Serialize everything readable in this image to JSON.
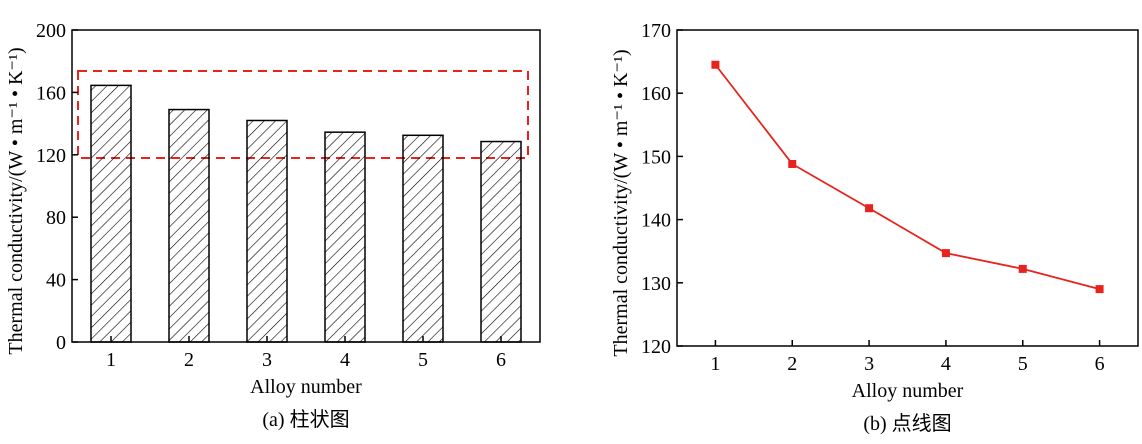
{
  "chart_data": [
    {
      "type": "bar",
      "caption": "(a) 柱状图",
      "xlabel": "Alloy number",
      "ylabel": "Thermal conductivity/(W • m⁻¹ • K⁻¹)",
      "categories": [
        "1",
        "2",
        "3",
        "4",
        "5",
        "6"
      ],
      "values": [
        164.5,
        149,
        142,
        134.5,
        132.5,
        128.5
      ],
      "color": "#000000",
      "ylim": [
        0,
        200
      ],
      "yticks": [
        0,
        40,
        80,
        120,
        160,
        200
      ]
    },
    {
      "type": "line",
      "caption": "(b) 点线图",
      "xlabel": "Alloy number",
      "ylabel": "Thermal conductivity/(W • m⁻¹ • K⁻¹)",
      "x": [
        1,
        2,
        3,
        4,
        5,
        6
      ],
      "values": [
        164.5,
        148.8,
        141.8,
        134.7,
        132.2,
        129
      ],
      "color": "#e8231d",
      "xlim": [
        0.5,
        6.5
      ],
      "xticks": [
        1,
        2,
        3,
        4,
        5,
        6
      ],
      "ylim": [
        120,
        170
      ],
      "yticks": [
        120,
        130,
        140,
        150,
        160,
        170
      ]
    }
  ]
}
